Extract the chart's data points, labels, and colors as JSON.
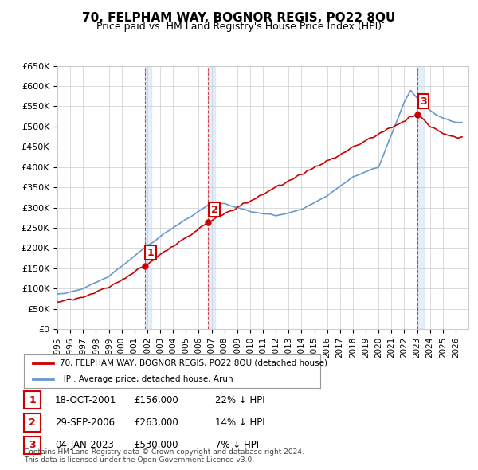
{
  "title": "70, FELPHAM WAY, BOGNOR REGIS, PO22 8QU",
  "subtitle": "Price paid vs. HM Land Registry's House Price Index (HPI)",
  "ylabel_ticks": [
    "£0",
    "£50K",
    "£100K",
    "£150K",
    "£200K",
    "£250K",
    "£300K",
    "£350K",
    "£400K",
    "£450K",
    "£500K",
    "£550K",
    "£600K",
    "£650K"
  ],
  "ytick_values": [
    0,
    50000,
    100000,
    150000,
    200000,
    250000,
    300000,
    350000,
    400000,
    450000,
    500000,
    550000,
    600000,
    650000
  ],
  "hpi_color": "#6699cc",
  "price_color": "#cc0000",
  "sale_marker_color": "#cc0000",
  "background_color": "#ffffff",
  "grid_color": "#cccccc",
  "sales": [
    {
      "date_num": 2001.8,
      "price": 156000,
      "label": "1"
    },
    {
      "date_num": 2006.75,
      "price": 263000,
      "label": "2"
    },
    {
      "date_num": 2023.02,
      "price": 530000,
      "label": "3"
    }
  ],
  "legend_property_label": "70, FELPHAM WAY, BOGNOR REGIS, PO22 8QU (detached house)",
  "legend_hpi_label": "HPI: Average price, detached house, Arun",
  "table_rows": [
    {
      "num": "1",
      "date": "18-OCT-2001",
      "price": "£156,000",
      "hpi": "22% ↓ HPI"
    },
    {
      "num": "2",
      "date": "29-SEP-2006",
      "price": "£263,000",
      "hpi": "14% ↓ HPI"
    },
    {
      "num": "3",
      "date": "04-JAN-2023",
      "price": "£530,000",
      "hpi": "7% ↓ HPI"
    }
  ],
  "footnote": "Contains HM Land Registry data © Crown copyright and database right 2024.\nThis data is licensed under the Open Government Licence v3.0.",
  "xmin": 1995,
  "xmax": 2027,
  "ymin": 0,
  "ymax": 650000
}
